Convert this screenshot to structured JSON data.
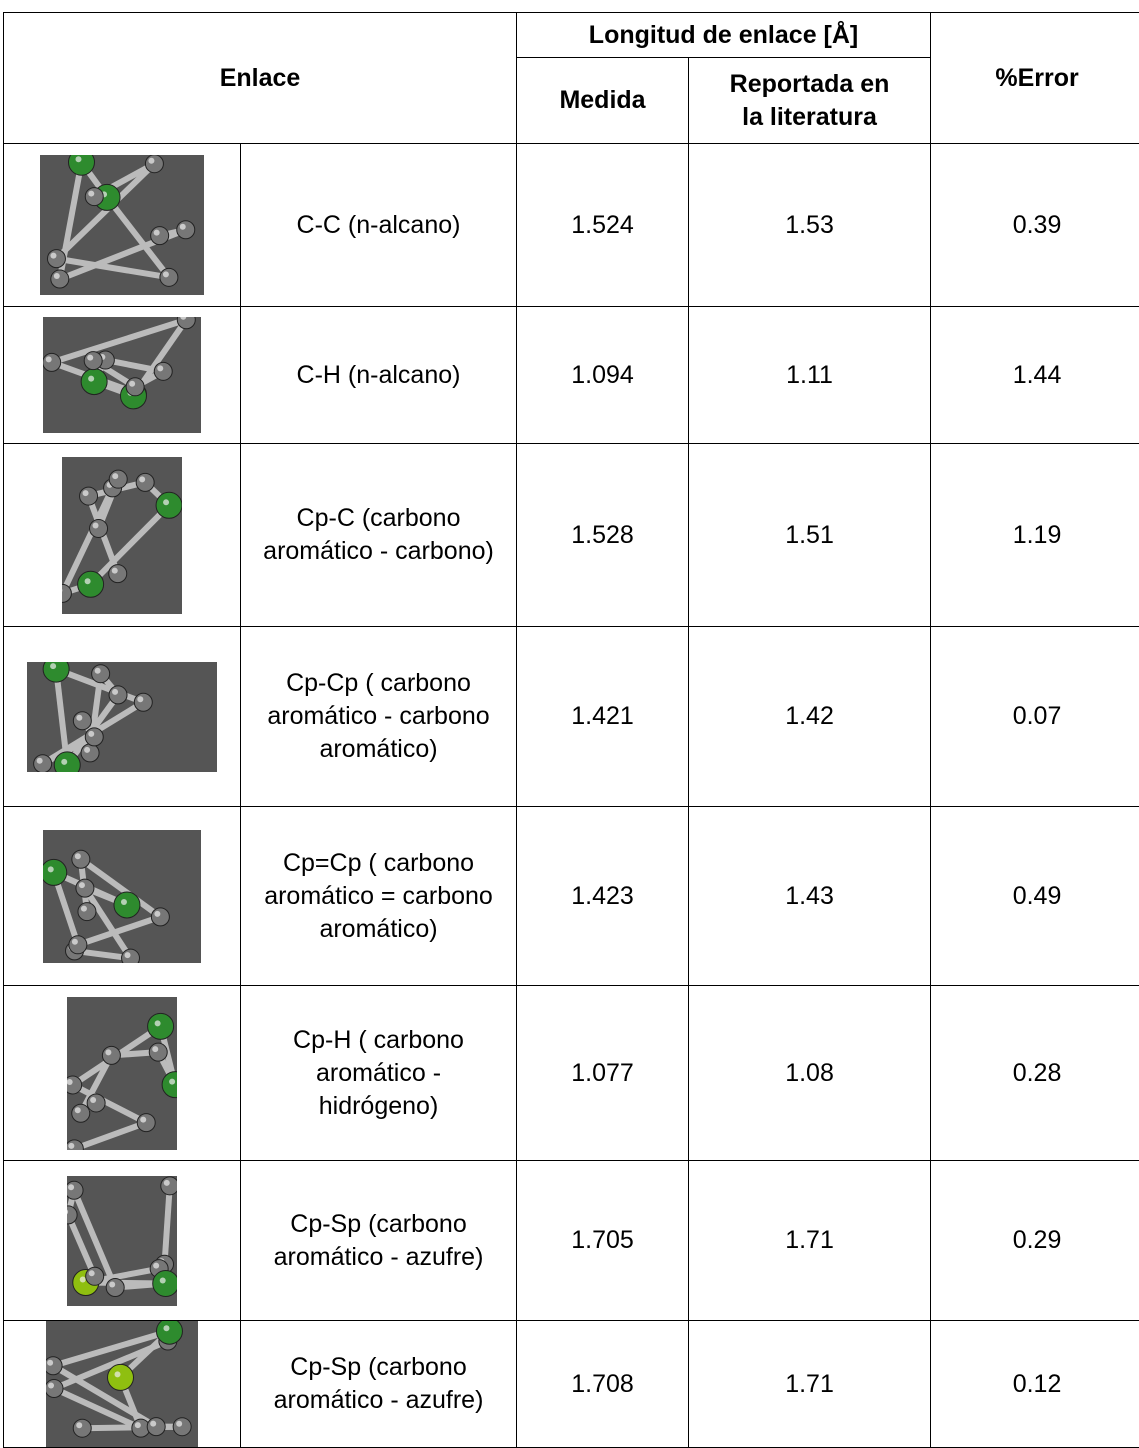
{
  "table": {
    "header": {
      "bond": "Enlace",
      "length_group": "Longitud de enlace [Å]",
      "measured": "Medida",
      "reported": "Reportada en la literatura",
      "error": "%Error"
    },
    "rows": [
      [
        "C-C (n-alcano)",
        1.524,
        1.53,
        0.39
      ],
      [
        "C-H (n-alcano)",
        1.094,
        1.11,
        1.44
      ],
      [
        "Cp-C (carbono aromático - carbono)",
        1.528,
        1.51,
        1.19
      ],
      [
        "Cp-Cp ( carbono aromático - carbono aromático)",
        1.421,
        1.42,
        0.07
      ],
      [
        "Cp=Cp ( carbono aromático = carbono aromático)",
        1.423,
        1.43,
        0.49
      ],
      [
        "Cp-H ( carbono aromático - hidrógeno)",
        1.077,
        1.08,
        0.28
      ],
      [
        "Cp-Sp (carbono aromático - azufre)",
        1.705,
        1.71,
        0.29
      ],
      [
        "Cp-Sp (carbono aromático - azufre)",
        1.708,
        1.71,
        0.12
      ]
    ]
  }
}
